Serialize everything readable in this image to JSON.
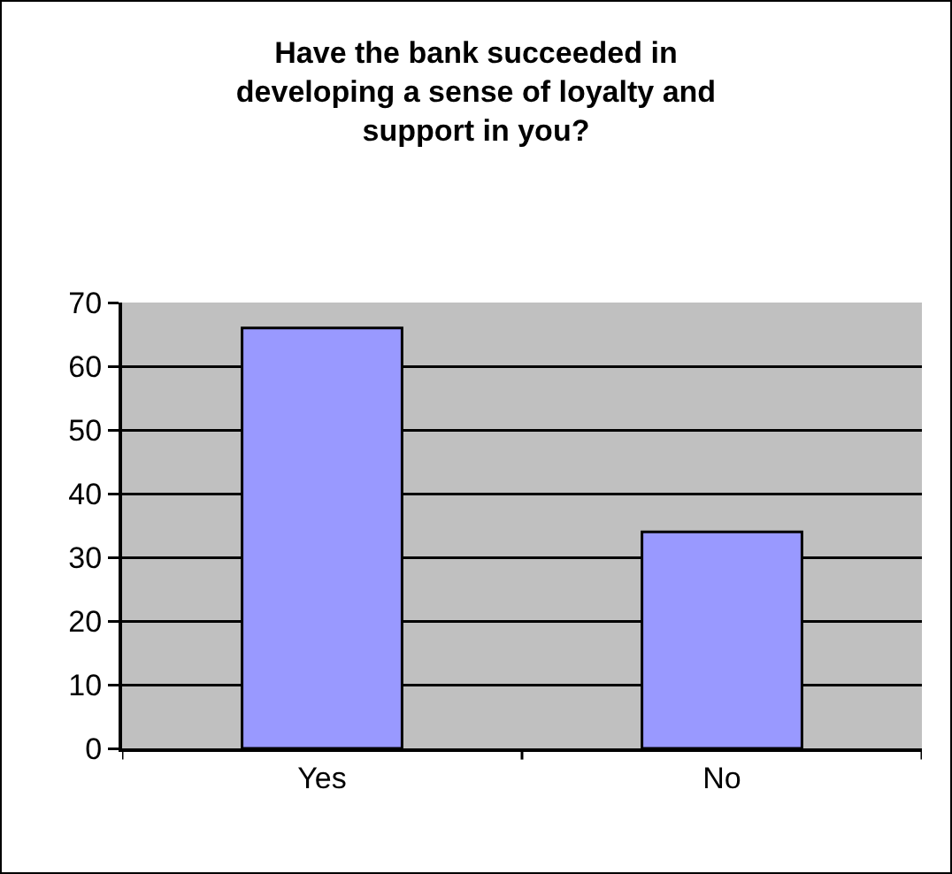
{
  "chart_data": {
    "type": "bar",
    "title": "Have the bank succeeded in developing a sense of loyalty and support in you?",
    "categories": [
      "Yes",
      "No"
    ],
    "values": [
      66,
      34
    ],
    "color": "#9999ff",
    "ylim": [
      0,
      70
    ],
    "yticks": [
      0,
      10,
      20,
      30,
      40,
      50,
      60,
      70
    ],
    "grid": "y",
    "legend": false
  }
}
